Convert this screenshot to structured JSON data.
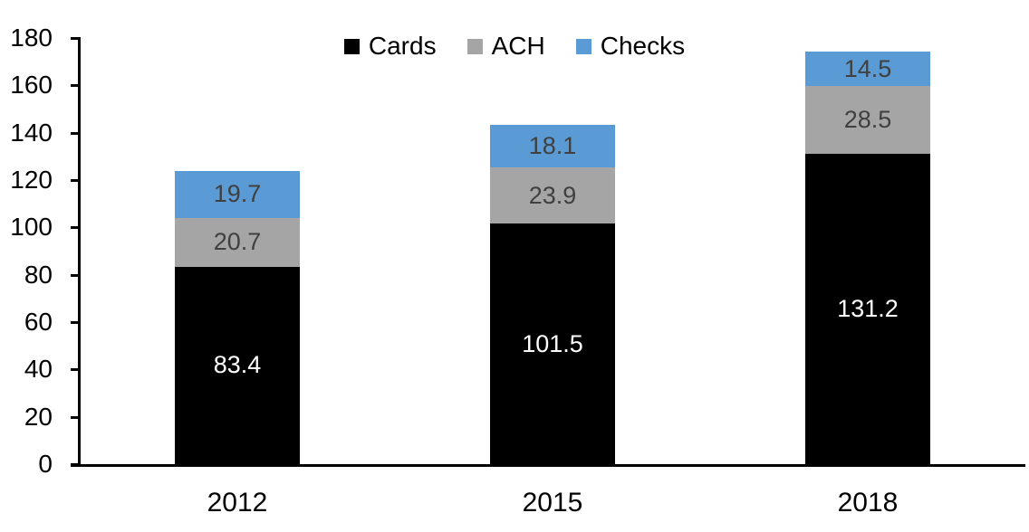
{
  "chart_data": {
    "type": "bar",
    "stacked": true,
    "title": "",
    "xlabel": "",
    "ylabel": "",
    "categories": [
      "2012",
      "2015",
      "2018"
    ],
    "series": [
      {
        "name": "Cards",
        "color": "#000000",
        "label_color": "#ffffff",
        "values": [
          83.4,
          101.5,
          131.2
        ]
      },
      {
        "name": "ACH",
        "color": "#a5a5a5",
        "label_color": "#404040",
        "values": [
          20.7,
          23.9,
          28.5
        ]
      },
      {
        "name": "Checks",
        "color": "#5b9bd5",
        "label_color": "#404040",
        "values": [
          19.7,
          18.1,
          14.5
        ]
      }
    ],
    "ylim": [
      0,
      180
    ],
    "ytick_step": 20,
    "yticks": [
      0,
      20,
      40,
      60,
      80,
      100,
      120,
      140,
      160,
      180
    ],
    "legend_position": "top",
    "legend_labels": [
      "Cards",
      "ACH",
      "Checks"
    ],
    "grid": false,
    "axis_color": "#000000"
  }
}
